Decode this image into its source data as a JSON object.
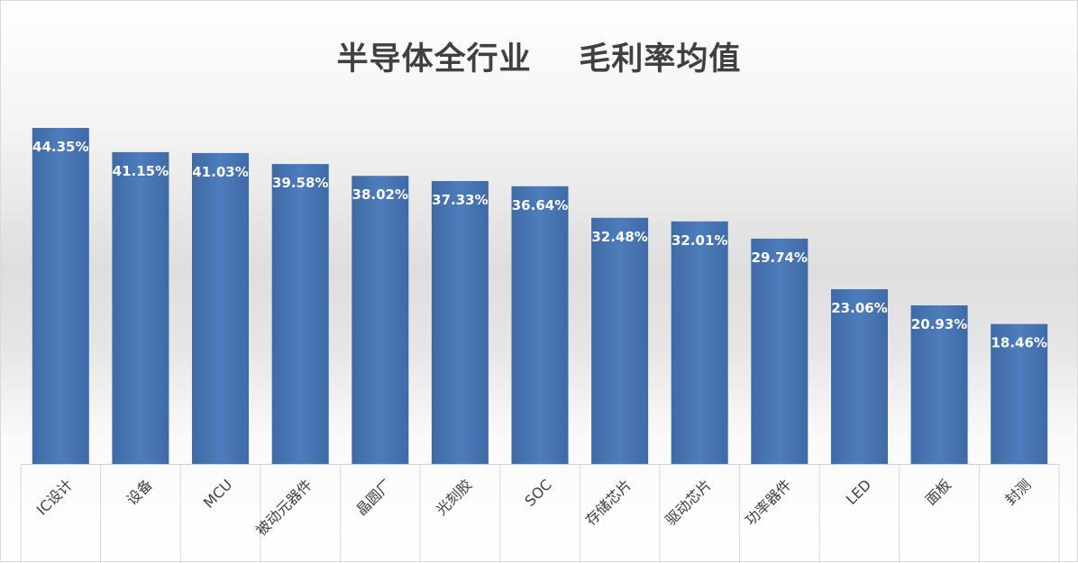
{
  "chart_data": {
    "type": "bar",
    "title": "半导体全行业    毛利率均值",
    "categories": [
      "IC设计",
      "设备",
      "MCU",
      "被动元器件",
      "晶圆厂",
      "光刻胶",
      "SOC",
      "存储芯片",
      "驱动芯片",
      "功率器件",
      "LED",
      "面板",
      "封测"
    ],
    "values": [
      44.35,
      41.15,
      41.03,
      39.58,
      38.02,
      37.33,
      36.64,
      32.48,
      32.01,
      29.74,
      23.06,
      20.93,
      18.46
    ],
    "value_labels": [
      "44.35%",
      "41.15%",
      "41.03%",
      "39.58%",
      "38.02%",
      "37.33%",
      "36.64%",
      "32.48%",
      "32.01%",
      "29.74%",
      "23.06%",
      "20.93%",
      "18.46%"
    ],
    "value_unit": "%",
    "ylim": [
      0,
      44.35
    ],
    "bar_color": "#4a78b8",
    "label_color": "#ffffff",
    "grid": false,
    "legend": "none"
  }
}
